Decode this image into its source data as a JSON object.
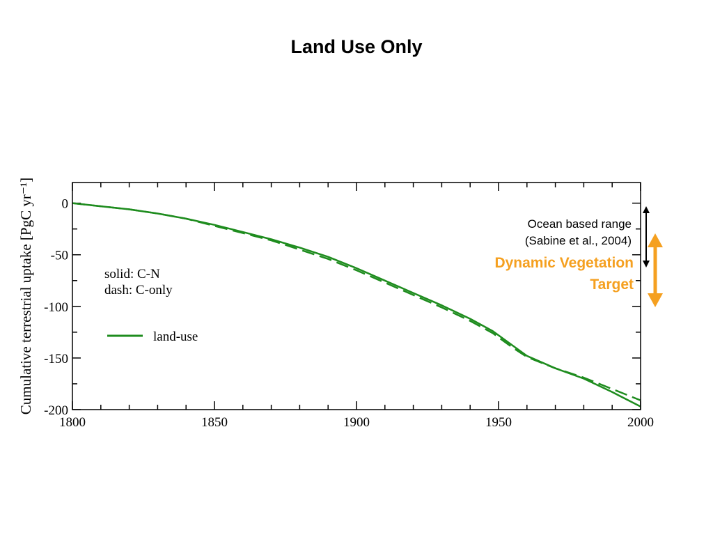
{
  "slide": {
    "title": "Land Use Only"
  },
  "chart_data": {
    "type": "line",
    "title": "",
    "xlabel": "",
    "ylabel": "Cumulative terrestrial uptake [PgC yr⁻¹]",
    "xlim": [
      1800,
      2000
    ],
    "ylim": [
      -200,
      20
    ],
    "xticks": [
      1800,
      1850,
      1900,
      1950,
      2000
    ],
    "yticks": [
      0,
      -50,
      -100,
      -150,
      -200
    ],
    "grid": false,
    "colors": {
      "series": "#1e8c1e",
      "ocean_arrow": "#000000",
      "target_arrow": "#f5a020",
      "target_text": "#f5a020"
    },
    "series": [
      {
        "name": "C-N",
        "style": "solid",
        "x": [
          1800,
          1810,
          1820,
          1830,
          1840,
          1850,
          1860,
          1870,
          1880,
          1890,
          1900,
          1910,
          1920,
          1930,
          1940,
          1948,
          1955,
          1960,
          1970,
          1980,
          1990,
          2000
        ],
        "y": [
          0,
          -3,
          -6,
          -10,
          -15,
          -21,
          -28,
          -35,
          -43,
          -52,
          -63,
          -75,
          -87,
          -99,
          -112,
          -124,
          -138,
          -148,
          -160,
          -170,
          -183,
          -197
        ]
      },
      {
        "name": "C-only",
        "style": "dash",
        "x": [
          1800,
          1810,
          1820,
          1830,
          1840,
          1850,
          1860,
          1870,
          1880,
          1890,
          1900,
          1910,
          1920,
          1930,
          1940,
          1948,
          1955,
          1960,
          1970,
          1980,
          1990,
          2000
        ],
        "y": [
          0,
          -3,
          -6,
          -10,
          -15,
          -22,
          -29,
          -36,
          -45,
          -54,
          -65,
          -77,
          -89,
          -101,
          -114,
          -126,
          -140,
          -149,
          -160,
          -169,
          -180,
          -191
        ]
      }
    ],
    "annotations": {
      "style_note_line1": "solid: C-N",
      "style_note_line2": "dash: C-only",
      "legend_label": "land-use",
      "ocean_line1": "Ocean based range",
      "ocean_line2": "(Sabine et al., 2004)",
      "target_line1": "Dynamic Vegetation",
      "target_line2": "Target"
    }
  }
}
